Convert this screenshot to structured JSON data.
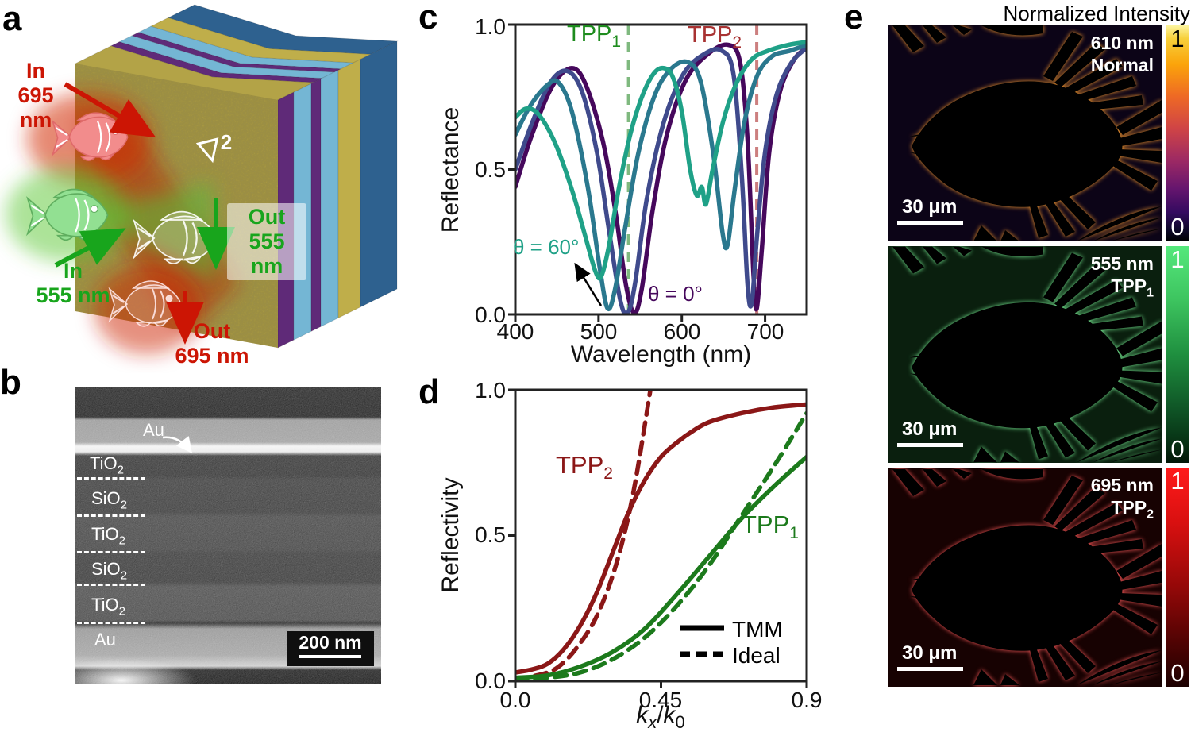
{
  "panels": {
    "a": "a",
    "b": "b",
    "c": "c",
    "d": "d",
    "e": "e"
  },
  "panel_a": {
    "in_red_line1": "In",
    "in_red_line2": "695 nm",
    "in_green_line1": "In",
    "in_green_line2": "555 nm",
    "out_green_line1": "Out",
    "out_green_line2": "555 nm",
    "out_red_line1": "Out",
    "out_red_line2": "695 nm",
    "cube_mark": "▽",
    "cube_mark_sup": "2",
    "colors": {
      "red_label": "#cc1504",
      "green_label": "#18a51c",
      "layer_gold": "#b3a347",
      "layer_gold_plain": "#bfae4a",
      "layer_purple": "#5f2a78",
      "layer_blue": "#74b6d4",
      "layer_darkblue": "#2e618f"
    }
  },
  "panel_b": {
    "top_label": {
      "base": "Au",
      "sub": ""
    },
    "layers": [
      {
        "base": "TiO",
        "sub": "2"
      },
      {
        "base": "SiO",
        "sub": "2"
      },
      {
        "base": "TiO",
        "sub": "2"
      },
      {
        "base": "SiO",
        "sub": "2"
      },
      {
        "base": "TiO",
        "sub": "2"
      },
      {
        "base": "Au",
        "sub": ""
      }
    ],
    "scale_bar": "200 nm"
  },
  "panel_c": {
    "ylabel": "Reflectance",
    "xlabel": "Wavelength (nm)",
    "yticks": [
      "1.0",
      "0.5",
      "0.0"
    ],
    "xticks": [
      "400",
      "500",
      "600",
      "700"
    ],
    "ann_tpp1": {
      "base": "TPP",
      "sub": "1"
    },
    "ann_tpp2": {
      "base": "TPP",
      "sub": "2"
    },
    "ann_theta60": "θ = 60°",
    "ann_theta0": "θ = 0°",
    "colors": {
      "tpp1": "#1e8c1e",
      "tpp2": "#a83232",
      "theta60": "#1fa187",
      "theta0": "#46085c"
    }
  },
  "panel_d": {
    "ylabel": "Reflectivity",
    "yticks": [
      "1.0",
      "0.5",
      "0.0"
    ],
    "xticks": [
      "0.0",
      "0.45",
      "0.9"
    ],
    "xlabel": {
      "k1": "k",
      "k1_sub": "x",
      "slash": "/",
      "k2": "k",
      "k2_sub": "0"
    },
    "ann_tpp2": {
      "base": "TPP",
      "sub": "2"
    },
    "ann_tpp1": {
      "base": "TPP",
      "sub": "1"
    },
    "legend": [
      {
        "label": "TMM",
        "style": "solid"
      },
      {
        "label": "Ideal",
        "style": "dashed"
      }
    ],
    "colors": {
      "tpp2": "#8b1717",
      "tpp1": "#1c7a1c"
    }
  },
  "panel_e": {
    "title": "Normalized Intensity",
    "images": [
      {
        "wavelength": "610 nm",
        "mode": {
          "base": "Normal",
          "sub": ""
        },
        "scale_bar": "30 μm",
        "cbar_max": "1",
        "cbar_min": "0",
        "colormap": "inferno"
      },
      {
        "wavelength": "555 nm",
        "mode": {
          "base": "TPP",
          "sub": "1"
        },
        "scale_bar": "30 μm",
        "cbar_max": "1",
        "cbar_min": "0",
        "colormap": "green"
      },
      {
        "wavelength": "695 nm",
        "mode": {
          "base": "TPP",
          "sub": "2"
        },
        "scale_bar": "30 μm",
        "cbar_max": "1",
        "cbar_min": "0",
        "colormap": "red"
      }
    ]
  },
  "chart_data": [
    {
      "type": "line",
      "panel": "c",
      "xlabel": "Wavelength (nm)",
      "ylabel": "Reflectance",
      "xlim": [
        400,
        750
      ],
      "ylim": [
        0,
        1
      ],
      "xticks": [
        400,
        500,
        600,
        700
      ],
      "yticks": [
        0,
        0.5,
        1
      ],
      "grid": false,
      "legend_position": "none",
      "vlines": [
        {
          "x": 536,
          "color": "#7fb97f",
          "label": "TPP1 resonance"
        },
        {
          "x": 690,
          "color": "#cc7f7f",
          "label": "TPP2 resonance"
        }
      ],
      "series": [
        {
          "name": "θ = 0°",
          "color": "#46085c",
          "dash": false,
          "points": [
            [
              400,
              0.44
            ],
            [
              420,
              0.62
            ],
            [
              445,
              0.79
            ],
            [
              468,
              0.85
            ],
            [
              485,
              0.79
            ],
            [
              505,
              0.6
            ],
            [
              520,
              0.36
            ],
            [
              533,
              0.1
            ],
            [
              543,
              0.005
            ],
            [
              552,
              0.09
            ],
            [
              565,
              0.36
            ],
            [
              582,
              0.62
            ],
            [
              605,
              0.81
            ],
            [
              632,
              0.9
            ],
            [
              656,
              0.93
            ],
            [
              670,
              0.87
            ],
            [
              679,
              0.6
            ],
            [
              686,
              0.14
            ],
            [
              690,
              0.02
            ],
            [
              696,
              0.22
            ],
            [
              705,
              0.56
            ],
            [
              718,
              0.77
            ],
            [
              735,
              0.88
            ],
            [
              750,
              0.92
            ]
          ]
        },
        {
          "name": "intermediate angle 1",
          "color": "#3f4a8c",
          "dash": false,
          "points": [
            [
              400,
              0.5
            ],
            [
              420,
              0.66
            ],
            [
              442,
              0.8
            ],
            [
              462,
              0.84
            ],
            [
              480,
              0.77
            ],
            [
              498,
              0.56
            ],
            [
              512,
              0.3
            ],
            [
              526,
              0.05
            ],
            [
              535,
              0.005
            ],
            [
              544,
              0.11
            ],
            [
              558,
              0.4
            ],
            [
              578,
              0.66
            ],
            [
              602,
              0.83
            ],
            [
              628,
              0.9
            ],
            [
              648,
              0.91
            ],
            [
              662,
              0.83
            ],
            [
              672,
              0.48
            ],
            [
              679,
              0.1
            ],
            [
              684,
              0.04
            ],
            [
              690,
              0.26
            ],
            [
              700,
              0.56
            ],
            [
              714,
              0.76
            ],
            [
              732,
              0.87
            ],
            [
              750,
              0.92
            ]
          ]
        },
        {
          "name": "intermediate angle 2",
          "color": "#2a788e",
          "dash": false,
          "points": [
            [
              400,
              0.62
            ],
            [
              418,
              0.72
            ],
            [
              438,
              0.79
            ],
            [
              452,
              0.8
            ],
            [
              468,
              0.7
            ],
            [
              487,
              0.44
            ],
            [
              502,
              0.15
            ],
            [
              511,
              0.02
            ],
            [
              520,
              0.09
            ],
            [
              532,
              0.3
            ],
            [
              548,
              0.56
            ],
            [
              568,
              0.76
            ],
            [
              588,
              0.85
            ],
            [
              608,
              0.87
            ],
            [
              623,
              0.8
            ],
            [
              638,
              0.55
            ],
            [
              649,
              0.28
            ],
            [
              655,
              0.24
            ],
            [
              663,
              0.42
            ],
            [
              675,
              0.66
            ],
            [
              690,
              0.82
            ],
            [
              708,
              0.89
            ],
            [
              730,
              0.91
            ],
            [
              750,
              0.93
            ]
          ]
        },
        {
          "name": "θ = 60°",
          "color": "#1fa187",
          "dash": false,
          "points": [
            [
              400,
              0.68
            ],
            [
              413,
              0.71
            ],
            [
              428,
              0.69
            ],
            [
              448,
              0.59
            ],
            [
              468,
              0.43
            ],
            [
              484,
              0.27
            ],
            [
              496,
              0.15
            ],
            [
              503,
              0.13
            ],
            [
              512,
              0.23
            ],
            [
              524,
              0.43
            ],
            [
              538,
              0.62
            ],
            [
              552,
              0.75
            ],
            [
              566,
              0.83
            ],
            [
              578,
              0.85
            ],
            [
              589,
              0.82
            ],
            [
              600,
              0.7
            ],
            [
              610,
              0.5
            ],
            [
              618,
              0.41
            ],
            [
              624,
              0.44
            ],
            [
              629,
              0.38
            ],
            [
              637,
              0.5
            ],
            [
              650,
              0.67
            ],
            [
              666,
              0.8
            ],
            [
              684,
              0.88
            ],
            [
              704,
              0.91
            ],
            [
              728,
              0.93
            ],
            [
              750,
              0.94
            ]
          ]
        }
      ]
    },
    {
      "type": "line",
      "panel": "d",
      "xlabel": "kx/k0",
      "ylabel": "Reflectivity",
      "xlim": [
        0,
        0.9
      ],
      "ylim": [
        0,
        1
      ],
      "xticks": [
        0,
        0.45,
        0.9
      ],
      "yticks": [
        0,
        0.5,
        1
      ],
      "grid": false,
      "legend_position": "lower right",
      "vlines": [],
      "series": [
        {
          "name": "TPP2 TMM",
          "color": "#8b1717",
          "dash": false,
          "points": [
            [
              0,
              0.03
            ],
            [
              0.05,
              0.04
            ],
            [
              0.1,
              0.06
            ],
            [
              0.15,
              0.11
            ],
            [
              0.2,
              0.19
            ],
            [
              0.25,
              0.3
            ],
            [
              0.3,
              0.44
            ],
            [
              0.35,
              0.58
            ],
            [
              0.4,
              0.69
            ],
            [
              0.45,
              0.77
            ],
            [
              0.5,
              0.82
            ],
            [
              0.55,
              0.86
            ],
            [
              0.6,
              0.89
            ],
            [
              0.7,
              0.92
            ],
            [
              0.8,
              0.94
            ],
            [
              0.9,
              0.95
            ]
          ]
        },
        {
          "name": "TPP2 Ideal",
          "color": "#8b1717",
          "dash": true,
          "points": [
            [
              0,
              0.005
            ],
            [
              0.1,
              0.03
            ],
            [
              0.15,
              0.065
            ],
            [
              0.2,
              0.13
            ],
            [
              0.25,
              0.22
            ],
            [
              0.3,
              0.36
            ],
            [
              0.34,
              0.52
            ],
            [
              0.37,
              0.68
            ],
            [
              0.4,
              0.88
            ],
            [
              0.42,
              1.02
            ]
          ]
        },
        {
          "name": "TPP1 TMM",
          "color": "#1c7a1c",
          "dash": false,
          "points": [
            [
              0,
              0.012
            ],
            [
              0.1,
              0.02
            ],
            [
              0.2,
              0.05
            ],
            [
              0.3,
              0.1
            ],
            [
              0.4,
              0.18
            ],
            [
              0.5,
              0.3
            ],
            [
              0.6,
              0.43
            ],
            [
              0.7,
              0.56
            ],
            [
              0.8,
              0.67
            ],
            [
              0.9,
              0.77
            ]
          ]
        },
        {
          "name": "TPP1 Ideal",
          "color": "#1c7a1c",
          "dash": true,
          "points": [
            [
              0,
              0.005
            ],
            [
              0.1,
              0.012
            ],
            [
              0.2,
              0.03
            ],
            [
              0.3,
              0.075
            ],
            [
              0.4,
              0.15
            ],
            [
              0.5,
              0.26
            ],
            [
              0.6,
              0.4
            ],
            [
              0.7,
              0.57
            ],
            [
              0.8,
              0.74
            ],
            [
              0.9,
              0.92
            ]
          ]
        }
      ]
    }
  ]
}
